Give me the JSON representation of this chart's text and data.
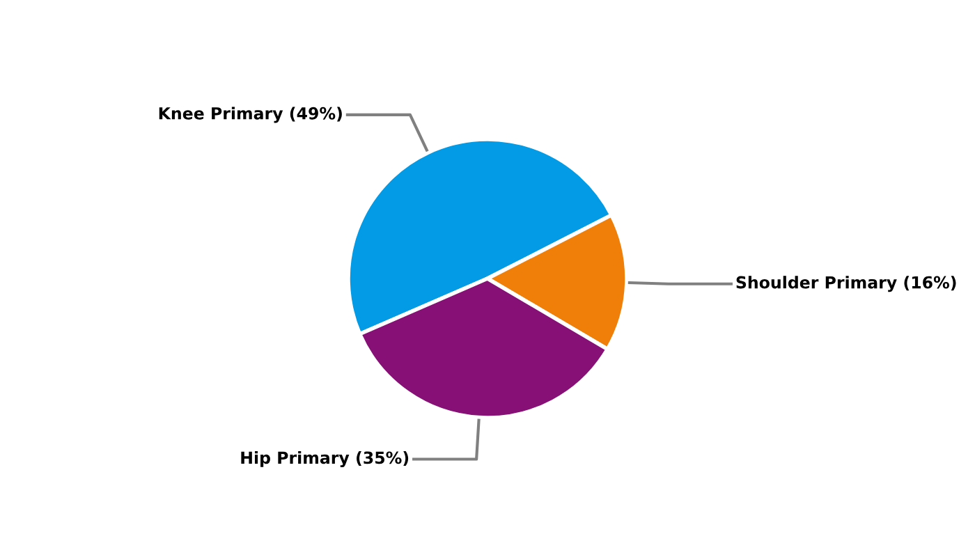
{
  "chart_data": {
    "type": "pie",
    "categories": [
      "Knee Primary (49%)",
      "Shoulder Primary (16%)",
      "Hip Primary (35%)"
    ],
    "values": [
      49,
      16,
      35
    ],
    "colors": [
      "#039be5",
      "#f07f09",
      "#861075"
    ],
    "legend": false
  }
}
